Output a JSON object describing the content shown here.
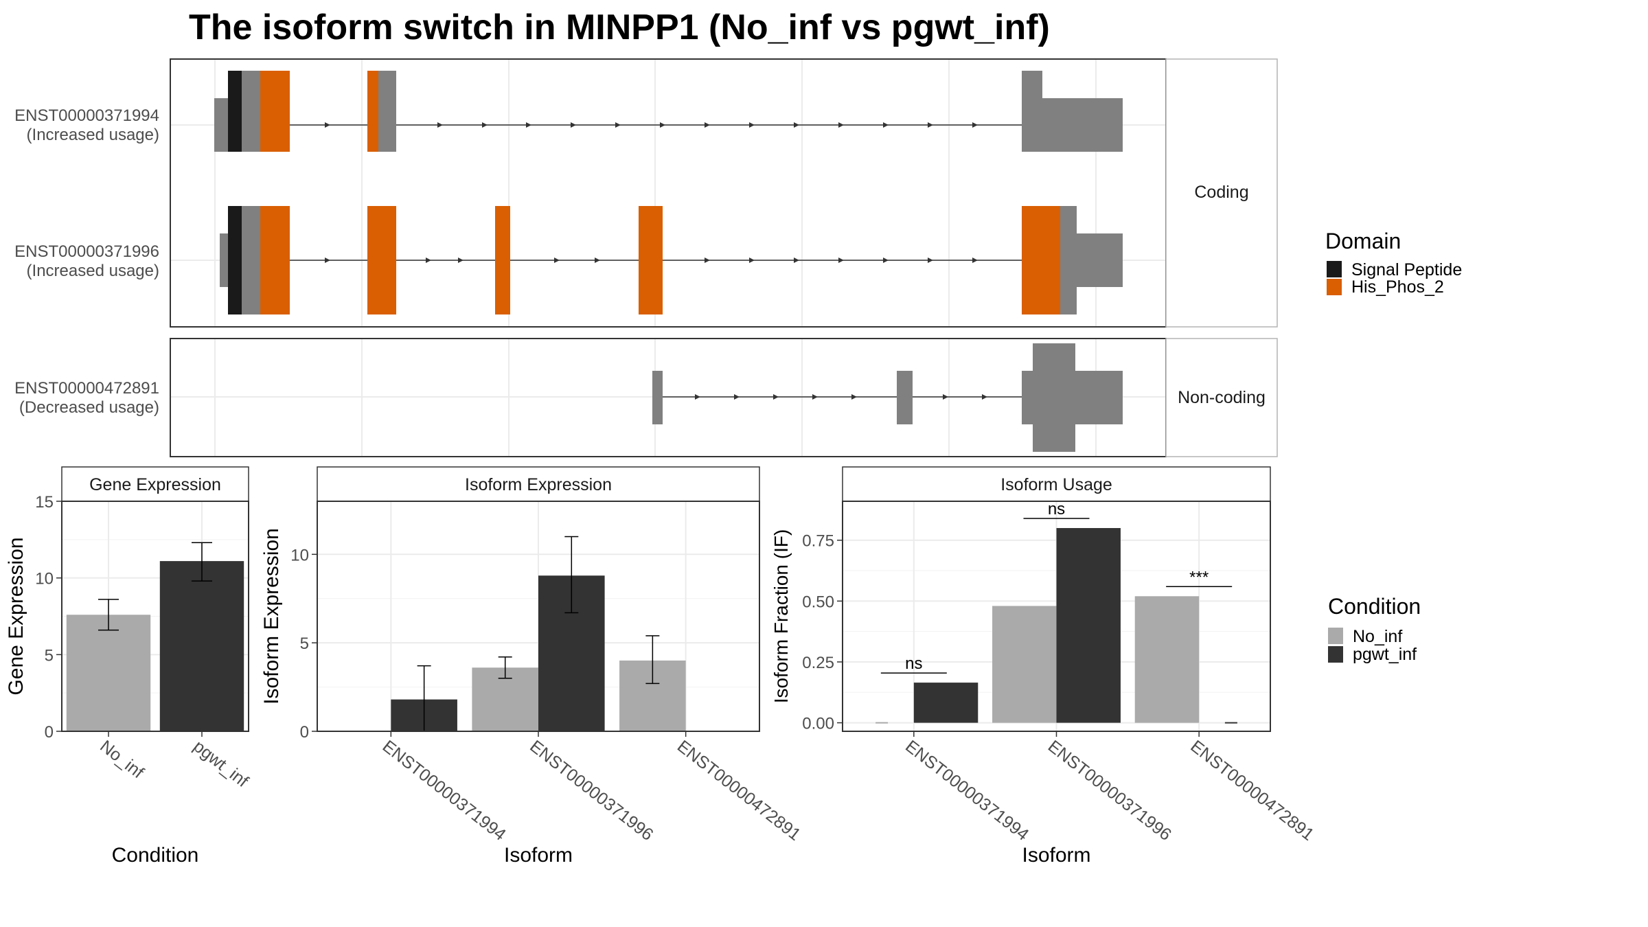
{
  "title": "The isoform switch in MINPP1 (No_inf vs pgwt_inf)",
  "colors": {
    "signal_peptide": "#1a1a1a",
    "his_phos_2": "#d95f02",
    "exon_grey": "#808080",
    "no_inf": "#aaaaaa",
    "pgwt_inf": "#333333",
    "panel_border": "#333333",
    "strip_border": "#b3b3b3",
    "grid": "#ebebeb"
  },
  "structure": {
    "facets": [
      "Coding",
      "Non-coding"
    ],
    "transcripts": [
      {
        "id": "ENST00000371994",
        "usage": "(Increased usage)",
        "facet": "Coding"
      },
      {
        "id": "ENST00000371996",
        "usage": "(Increased usage)",
        "facet": "Coding"
      },
      {
        "id": "ENST00000472891",
        "usage": "(Decreased usage)",
        "facet": "Non-coding"
      }
    ],
    "legend": {
      "title": "Domain",
      "items": [
        {
          "label": "Signal Peptide",
          "color": "#1a1a1a"
        },
        {
          "label": "His_Phos_2",
          "color": "#d95f02"
        }
      ]
    }
  },
  "chart_data": [
    {
      "type": "bar",
      "strip": "Gene Expression",
      "xlabel": "Condition",
      "ylabel": "Gene Expression",
      "categories": [
        "No_inf",
        "pgwt_inf"
      ],
      "values": [
        7.6,
        11.1
      ],
      "errors": [
        [
          6.6,
          8.6
        ],
        [
          9.8,
          12.3
        ]
      ],
      "ylim": [
        0,
        15
      ],
      "yticks": [
        0,
        5,
        10,
        15
      ],
      "yticklabels": [
        "0",
        "5",
        "10",
        "15"
      ]
    },
    {
      "type": "bar",
      "strip": "Isoform Expression",
      "xlabel": "Isoform",
      "ylabel": "Isoform Expression",
      "categories": [
        "ENST00000371994",
        "ENST00000371996",
        "ENST00000472891"
      ],
      "series": [
        {
          "name": "No_inf",
          "values": [
            0,
            3.6,
            4.0
          ],
          "errors": [
            [
              0,
              0
            ],
            [
              3.0,
              4.2
            ],
            [
              2.7,
              5.4
            ]
          ]
        },
        {
          "name": "pgwt_inf",
          "values": [
            1.8,
            8.8,
            0
          ],
          "errors": [
            [
              0,
              3.7
            ],
            [
              6.7,
              11.0
            ],
            [
              0,
              0
            ]
          ]
        }
      ],
      "ylim": [
        0,
        13
      ],
      "yticks": [
        0,
        5,
        10
      ],
      "yticklabels": [
        "0",
        "5",
        "10"
      ]
    },
    {
      "type": "bar",
      "strip": "Isoform Usage",
      "xlabel": "Isoform",
      "ylabel": "Isoform Fraction (IF)",
      "categories": [
        "ENST00000371994",
        "ENST00000371996",
        "ENST00000472891"
      ],
      "series": [
        {
          "name": "No_inf",
          "values": [
            0,
            0.48,
            0.52
          ]
        },
        {
          "name": "pgwt_inf",
          "values": [
            0.165,
            0.8,
            0
          ]
        }
      ],
      "annotations": [
        "ns",
        "ns",
        "***"
      ],
      "ylim": [
        -0.035,
        0.91
      ],
      "yticks": [
        0,
        0.25,
        0.5,
        0.75
      ],
      "yticklabels": [
        "0.00",
        "0.25",
        "0.50",
        "0.75"
      ]
    }
  ],
  "condition_legend": {
    "title": "Condition",
    "items": [
      {
        "label": "No_inf",
        "color": "#aaaaaa"
      },
      {
        "label": "pgwt_inf",
        "color": "#333333"
      }
    ]
  }
}
